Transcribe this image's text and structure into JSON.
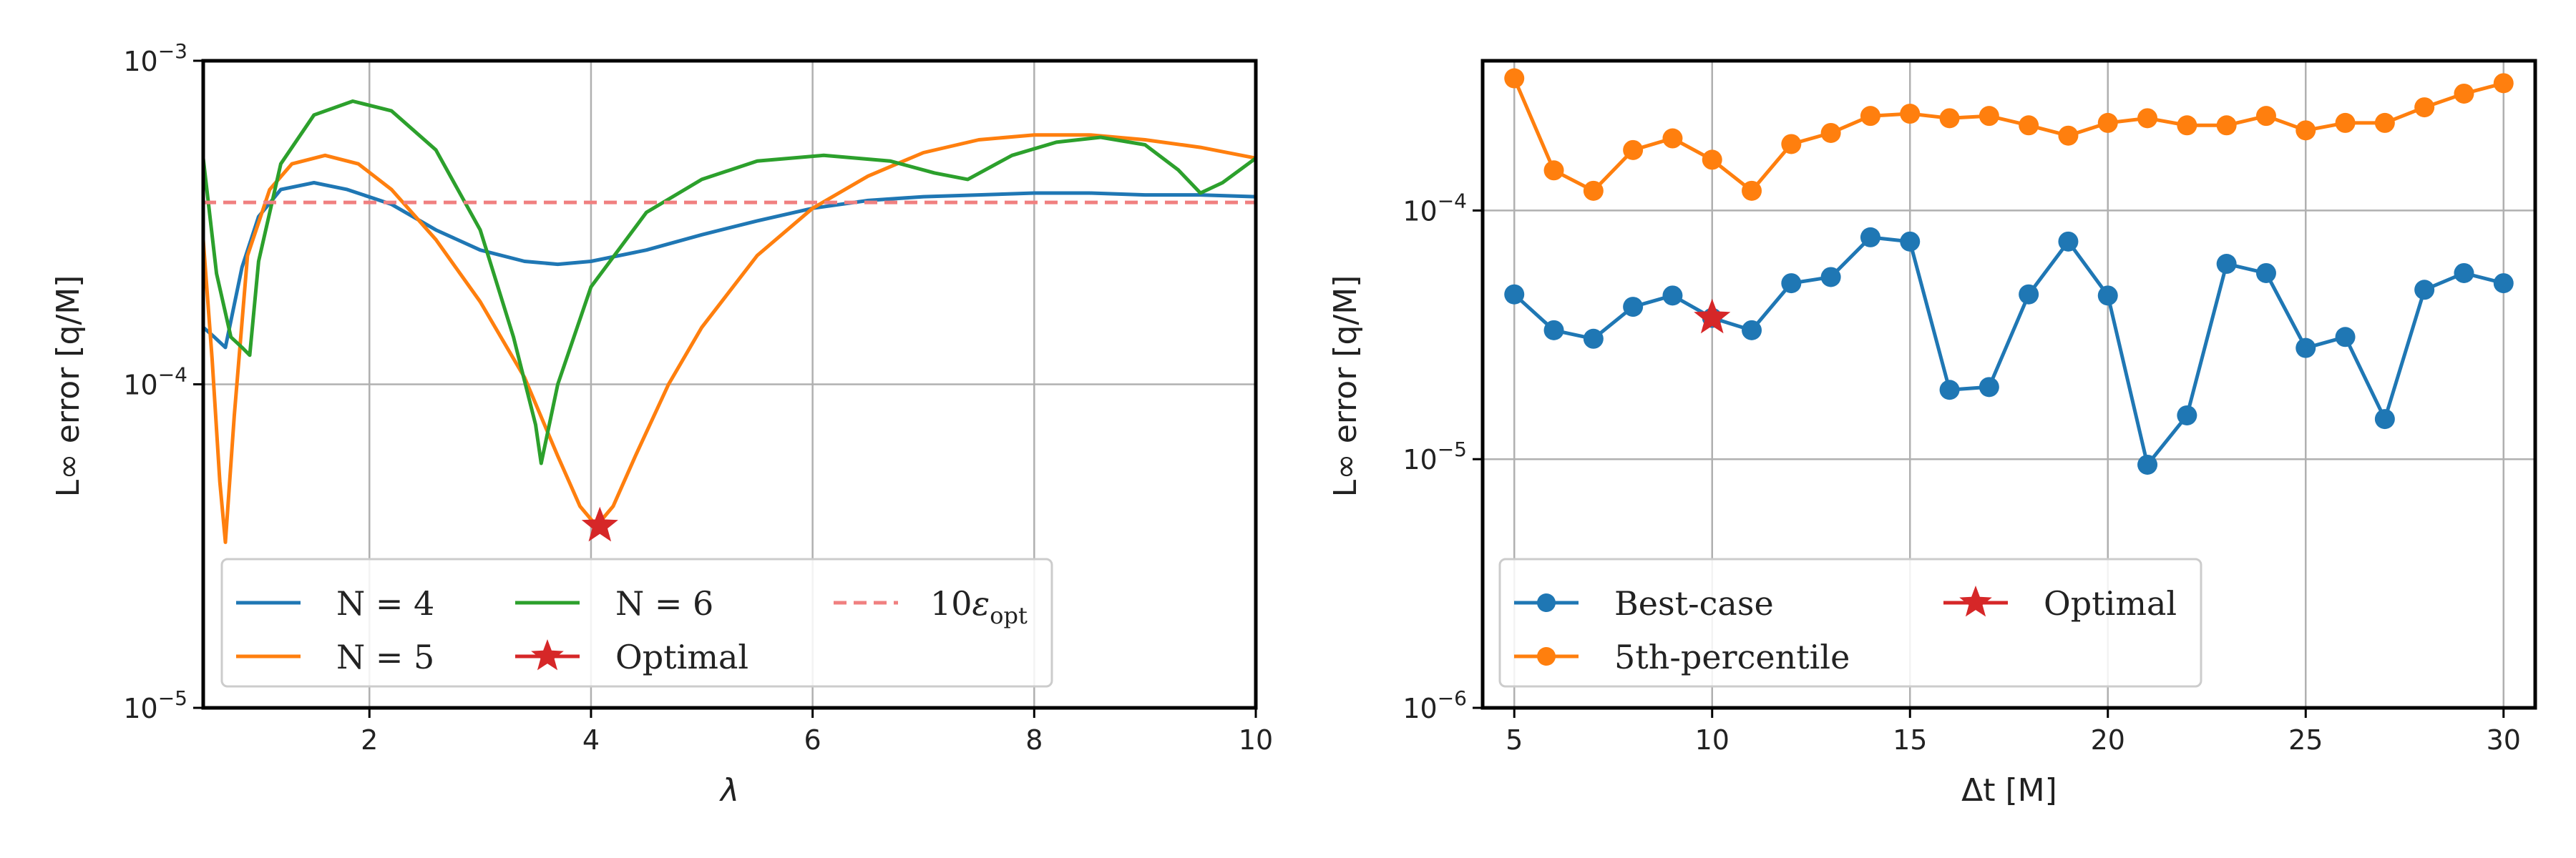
{
  "chart_data": [
    {
      "type": "line",
      "panel": "left",
      "xlabel": "λ",
      "ylabel": "L∞ error [q/M]",
      "yscale": "log",
      "xlim": [
        0.5,
        10
      ],
      "ylim": [
        1e-05,
        0.001
      ],
      "xticks": [
        2,
        4,
        6,
        8,
        10
      ],
      "yticks": [
        {
          "value": 1e-05,
          "base": "10",
          "exp": "−5"
        },
        {
          "value": 0.0001,
          "base": "10",
          "exp": "−4"
        },
        {
          "value": 0.001,
          "base": "10",
          "exp": "−3"
        }
      ],
      "series": [
        {
          "name": "N = 4",
          "color": "#1f77b4",
          "x": [
            0.5,
            0.6,
            0.7,
            0.85,
            1.0,
            1.2,
            1.5,
            1.8,
            2.2,
            2.6,
            3.0,
            3.4,
            3.7,
            4.0,
            4.5,
            5.0,
            5.5,
            6.0,
            6.5,
            7.0,
            7.5,
            8.0,
            8.5,
            9.0,
            9.5,
            10.0
          ],
          "y": [
            0.00015,
            0.00014,
            0.00013,
            0.00023,
            0.00033,
            0.0004,
            0.00042,
            0.0004,
            0.00036,
            0.0003,
            0.00026,
            0.00024,
            0.000235,
            0.00024,
            0.00026,
            0.00029,
            0.00032,
            0.00035,
            0.00037,
            0.00038,
            0.000385,
            0.00039,
            0.00039,
            0.000385,
            0.000385,
            0.00038
          ]
        },
        {
          "name": "N = 5",
          "color": "#ff7f0e",
          "x": [
            0.5,
            0.58,
            0.65,
            0.7,
            0.78,
            0.9,
            1.1,
            1.3,
            1.6,
            1.9,
            2.2,
            2.6,
            3.0,
            3.4,
            3.7,
            3.9,
            4.05,
            4.2,
            4.4,
            4.7,
            5.0,
            5.5,
            6.0,
            6.5,
            7.0,
            7.5,
            8.0,
            8.5,
            9.0,
            9.5,
            10.0
          ],
          "y": [
            0.00028,
            0.00012,
            5e-05,
            3.25e-05,
            8e-05,
            0.00025,
            0.0004,
            0.00048,
            0.00051,
            0.00048,
            0.0004,
            0.00028,
            0.00018,
            0.000105,
            6e-05,
            4.2e-05,
            3.65e-05,
            4.2e-05,
            6e-05,
            0.0001,
            0.00015,
            0.00025,
            0.00035,
            0.00044,
            0.00052,
            0.00057,
            0.00059,
            0.00059,
            0.00057,
            0.00054,
            0.0005
          ]
        },
        {
          "name": "N = 6",
          "color": "#2ca02c",
          "x": [
            0.5,
            0.62,
            0.75,
            0.85,
            0.92,
            1.0,
            1.2,
            1.5,
            1.85,
            2.2,
            2.6,
            3.0,
            3.3,
            3.5,
            3.55,
            3.7,
            4.0,
            4.5,
            5.0,
            5.5,
            6.1,
            6.7,
            7.1,
            7.4,
            7.8,
            8.2,
            8.6,
            9.0,
            9.3,
            9.5,
            9.7,
            10.0
          ],
          "y": [
            0.0005,
            0.00022,
            0.00014,
            0.00013,
            0.000123,
            0.00024,
            0.00048,
            0.00068,
            0.00075,
            0.0007,
            0.00053,
            0.0003,
            0.00014,
            7.5e-05,
            5.7e-05,
            0.0001,
            0.0002,
            0.00034,
            0.00043,
            0.00049,
            0.00051,
            0.00049,
            0.00045,
            0.00043,
            0.00051,
            0.00056,
            0.00058,
            0.00055,
            0.00046,
            0.00039,
            0.00042,
            0.0005
          ]
        },
        {
          "name": "10ε_opt",
          "color": "#f08080",
          "dashed": true,
          "x": [
            0.5,
            10.0
          ],
          "y": [
            0.000365,
            0.000365
          ]
        }
      ],
      "markers": [
        {
          "name": "Optimal",
          "x": 4.08,
          "y": 3.65e-05,
          "color": "#d62728"
        }
      ],
      "legend": {
        "placement": "lower-left",
        "entries": [
          "N = 4",
          "N = 5",
          "N = 6",
          "Optimal",
          "10ε_opt"
        ]
      }
    },
    {
      "type": "line",
      "panel": "right",
      "xlabel": "Δt [M]",
      "ylabel": "L∞ error [q/M]",
      "yscale": "log",
      "xlim": [
        4.2,
        30.8
      ],
      "ylim": [
        1e-06,
        0.0004
      ],
      "xticks": [
        5,
        10,
        15,
        20,
        25,
        30
      ],
      "yticks": [
        {
          "value": 1e-06,
          "base": "10",
          "exp": "−6"
        },
        {
          "value": 1e-05,
          "base": "10",
          "exp": "−5"
        },
        {
          "value": 0.0001,
          "base": "10",
          "exp": "−4"
        }
      ],
      "x": [
        5,
        6,
        7,
        8,
        9,
        10,
        11,
        12,
        13,
        14,
        15,
        16,
        17,
        18,
        19,
        20,
        21,
        22,
        23,
        24,
        25,
        26,
        27,
        28,
        29,
        30
      ],
      "series": [
        {
          "name": "Best-case",
          "color": "#1f77b4",
          "values": [
            4.6e-05,
            3.3e-05,
            3.05e-05,
            4.1e-05,
            4.55e-05,
            3.7e-05,
            3.3e-05,
            5.1e-05,
            5.4e-05,
            7.8e-05,
            7.5e-05,
            1.9e-05,
            1.95e-05,
            4.6e-05,
            7.5e-05,
            4.55e-05,
            9.5e-06,
            1.5e-05,
            6.1e-05,
            5.6e-05,
            2.8e-05,
            3.1e-05,
            1.45e-05,
            4.8e-05,
            5.6e-05,
            5.1e-05
          ]
        },
        {
          "name": "5th-percentile",
          "color": "#ff7f0e",
          "values": [
            0.00034,
            0.000145,
            0.00012,
            0.000175,
            0.000195,
            0.00016,
            0.00012,
            0.000185,
            0.000205,
            0.00024,
            0.000245,
            0.000235,
            0.00024,
            0.00022,
            0.0002,
            0.000225,
            0.000235,
            0.00022,
            0.00022,
            0.00024,
            0.00021,
            0.000225,
            0.000225,
            0.00026,
            0.000295,
            0.000325
          ]
        }
      ],
      "markers": [
        {
          "name": "Optimal",
          "x": 10,
          "y": 3.7e-05,
          "color": "#d62728"
        }
      ],
      "legend": {
        "placement": "lower-left",
        "entries": [
          "Best-case",
          "5th-percentile",
          "Optimal"
        ]
      }
    }
  ]
}
